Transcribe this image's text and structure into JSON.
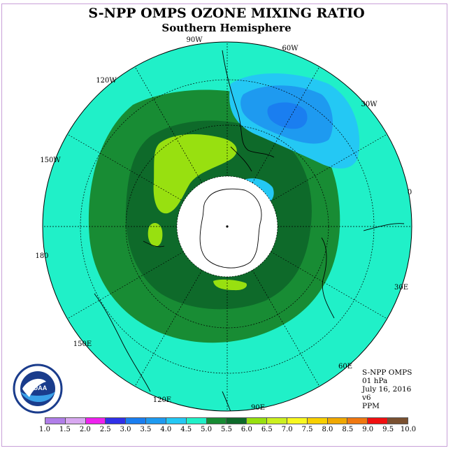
{
  "title": "S-NPP OMPS OZONE MIXING RATIO",
  "subtitle": "Southern Hemisphere",
  "longitude_labels": [
    {
      "text": "90W"
    },
    {
      "text": "60W"
    },
    {
      "text": "30W"
    },
    {
      "text": "0"
    },
    {
      "text": "30E"
    },
    {
      "text": "60E"
    },
    {
      "text": "90E"
    },
    {
      "text": "120E"
    },
    {
      "text": "150E"
    },
    {
      "text": "180"
    },
    {
      "text": "150W"
    },
    {
      "text": "120W"
    }
  ],
  "info": {
    "instrument": "S-NPP OMPS",
    "level": "01 hPa",
    "date": "July 16, 2016",
    "version": "v6",
    "units": "PPM"
  },
  "logo": {
    "text": "NOAA",
    "icon": "noaa-logo-icon"
  },
  "colorbar": {
    "ticks": [
      "1.0",
      "1.5",
      "2.0",
      "2.5",
      "3.0",
      "3.5",
      "4.0",
      "4.5",
      "5.0",
      "5.5",
      "6.0",
      "6.5",
      "7.0",
      "7.5",
      "8.0",
      "8.5",
      "9.0",
      "9.5",
      "10.0"
    ],
    "colors": [
      "#b07ee8",
      "#d8a8f0",
      "#ee22ee",
      "#3030e8",
      "#1a7ef0",
      "#1e9af0",
      "#24c8f4",
      "#20f0c8",
      "#188c34",
      "#0e6a2a",
      "#98e010",
      "#ccf020",
      "#f8f820",
      "#f8d000",
      "#f0a800",
      "#f07810",
      "#f01010",
      "#7a5030"
    ]
  },
  "map_colors": {
    "background": "#20f0c8",
    "mid_green": "#188c34",
    "dark_green": "#0e6a2a",
    "light_green": "#98e010",
    "low_blue_outer": "#24c8f4",
    "low_blue_mid": "#1e9af0",
    "low_blue_core": "#1a7ef0",
    "pole_mask": "#ffffff"
  }
}
